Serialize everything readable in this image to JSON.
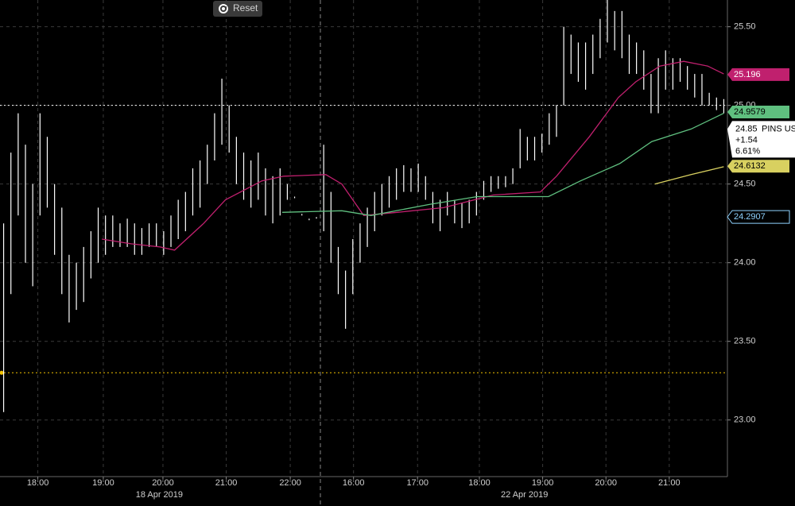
{
  "ui": {
    "reset": "Reset"
  },
  "chart_data": {
    "type": "ohlc",
    "xlim": [
      0,
      100
    ],
    "ylim": [
      22.64,
      25.67
    ],
    "yticks": [
      {
        "value": 23,
        "label": "23.00"
      },
      {
        "value": 23.5,
        "label": "23.50"
      },
      {
        "value": 24,
        "label": "24.00"
      },
      {
        "value": 24.5,
        "label": "24.50"
      },
      {
        "value": 25,
        "label": "25.00"
      },
      {
        "value": 25.5,
        "label": "25.50"
      }
    ],
    "xticks": [
      {
        "value": 5.2,
        "label": "18:00"
      },
      {
        "value": 14.2,
        "label": "19:00"
      },
      {
        "value": 22.4,
        "label": "20:00"
      },
      {
        "value": 31.1,
        "label": "21:00"
      },
      {
        "value": 39.9,
        "label": "22:00"
      },
      {
        "value": 48.6,
        "label": "16:00"
      },
      {
        "value": 57.4,
        "label": "17:00"
      },
      {
        "value": 65.9,
        "label": "18:00"
      },
      {
        "value": 74.6,
        "label": "19:00"
      },
      {
        "value": 83.3,
        "label": "20:00"
      },
      {
        "value": 92,
        "label": "21:00"
      }
    ],
    "date_labels": [
      {
        "value": 21.9,
        "label": "18 Apr 2019"
      },
      {
        "value": 72.1,
        "label": "22 Apr 2019"
      }
    ],
    "grid": true,
    "bars": {
      "color": "#ffffff",
      "high": [
        24.25,
        24.7,
        24.95,
        24.75,
        24.5,
        24.95,
        24.8,
        24.5,
        24.35,
        24.05,
        24.0,
        24.1,
        24.2,
        24.35,
        24.3,
        24.3,
        24.25,
        24.28,
        24.25,
        24.22,
        24.25,
        24.25,
        24.2,
        24.3,
        24.4,
        24.45,
        24.6,
        24.65,
        24.75,
        24.95,
        25.17,
        25.0,
        24.8,
        24.7,
        24.65,
        24.7,
        24.6,
        24.55,
        24.6,
        24.5,
        24.42,
        24.31,
        24.28,
        24.29,
        24.75,
        24.45,
        24.1,
        23.95,
        24.15,
        24.25,
        24.35,
        24.45,
        24.5,
        24.55,
        24.6,
        24.62,
        24.6,
        24.63,
        24.55,
        24.45,
        24.4,
        24.45,
        24.4,
        24.38,
        24.4,
        24.45,
        24.52,
        24.55,
        24.55,
        24.55,
        24.6,
        24.85,
        24.8,
        24.8,
        24.82,
        24.95,
        25.0,
        25.5,
        25.45,
        25.4,
        25.4,
        25.45,
        25.55,
        25.68,
        25.6,
        25.6,
        25.45,
        25.4,
        25.35,
        25.2,
        25.3,
        25.35,
        25.3,
        25.3,
        25.25,
        25.2,
        25.2,
        25.08,
        25.05,
        25.04
      ],
      "low": [
        23.05,
        23.8,
        24.3,
        24.0,
        23.85,
        24.3,
        24.35,
        24.05,
        23.8,
        23.62,
        23.7,
        23.75,
        23.9,
        24.0,
        24.05,
        24.1,
        24.1,
        24.1,
        24.05,
        24.05,
        24.1,
        24.1,
        24.05,
        24.1,
        24.15,
        24.2,
        24.3,
        24.35,
        24.5,
        24.65,
        24.75,
        24.7,
        24.5,
        24.4,
        24.35,
        24.4,
        24.3,
        24.25,
        24.3,
        24.4,
        24.41,
        24.3,
        24.27,
        24.28,
        24.2,
        24.0,
        23.8,
        23.58,
        23.8,
        24.0,
        24.1,
        24.2,
        24.3,
        24.35,
        24.4,
        24.45,
        24.45,
        24.45,
        24.4,
        24.25,
        24.2,
        24.3,
        24.25,
        24.22,
        24.25,
        24.3,
        24.4,
        24.45,
        24.47,
        24.48,
        24.5,
        24.6,
        24.65,
        24.65,
        24.7,
        24.75,
        24.8,
        25.0,
        25.2,
        25.15,
        25.1,
        25.2,
        25.3,
        25.4,
        25.35,
        25.3,
        25.2,
        25.2,
        25.1,
        24.95,
        24.95,
        25.1,
        25.1,
        25.15,
        25.1,
        25.05,
        25.0,
        25.0,
        24.97,
        24.95
      ]
    },
    "series": [
      {
        "color": "#c0206e",
        "x": [
          14,
          18,
          22,
          24,
          28,
          31,
          36,
          39,
          44.8,
          47,
          50,
          54.6,
          61,
          67.8,
          74.3,
          76.5,
          81,
          85,
          87.4,
          90.7,
          94,
          97.3,
          99.5
        ],
        "values": [
          24.15,
          24.12,
          24.1,
          24.08,
          24.25,
          24.4,
          24.52,
          24.55,
          24.56,
          24.5,
          24.3,
          24.32,
          24.35,
          24.43,
          24.45,
          24.55,
          24.8,
          25.05,
          25.15,
          25.25,
          25.28,
          25.25,
          25.2
        ],
        "last_value": 25.196
      },
      {
        "color": "#5fbf7f",
        "x": [
          38.8,
          47,
          51,
          59,
          65.6,
          75.4,
          79.8,
          85.2,
          89.6,
          95,
          99.5
        ],
        "values": [
          24.32,
          24.33,
          24.3,
          24.37,
          24.42,
          24.42,
          24.52,
          24.63,
          24.77,
          24.85,
          24.95
        ],
        "last_value": 24.9579
      },
      {
        "color": "#d8d060",
        "x": [
          90,
          95,
          99.5
        ],
        "values": [
          24.5,
          24.56,
          24.61
        ],
        "last_value": 24.6132
      }
    ],
    "reference_tags": [
      {
        "value": 24.2907,
        "color": "#8fd3ff"
      }
    ],
    "reference_lines": [
      {
        "value": 25,
        "color": "#ffffff"
      },
      {
        "value": 23.3,
        "color": "#f2c200"
      }
    ],
    "quote": {
      "price": 24.85,
      "ticker": "PINS US",
      "change": "+1.54",
      "change_pct": "6.61%"
    }
  }
}
